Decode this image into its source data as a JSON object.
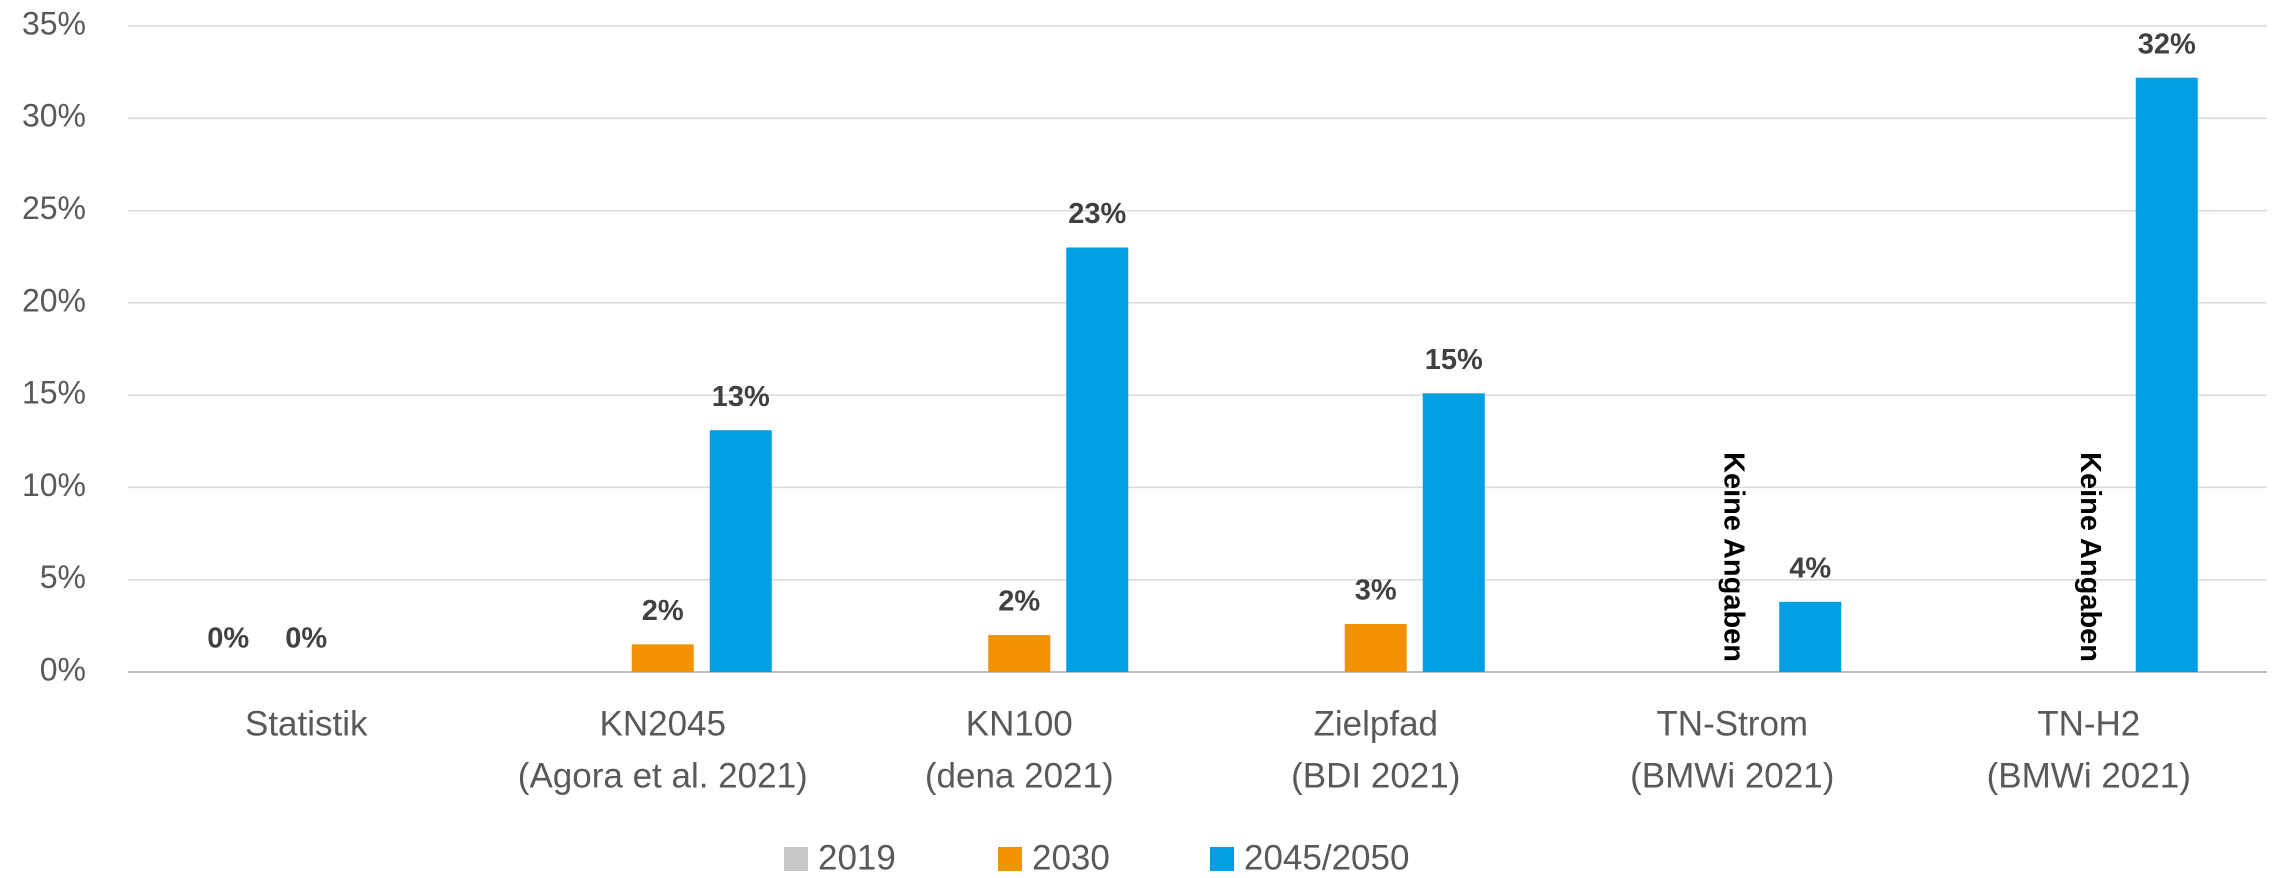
{
  "chart_data": {
    "type": "bar",
    "categories": [
      [
        "Statistik"
      ],
      [
        "KN2045",
        "(Agora et al. 2021)"
      ],
      [
        "KN100",
        "(dena 2021)"
      ],
      [
        "Zielpfad",
        "(BDI 2021)"
      ],
      [
        "TN-Strom",
        "(BMWi 2021)"
      ],
      [
        "TN-H2",
        "(BMWi 2021)"
      ]
    ],
    "series": [
      {
        "name": "2019",
        "color": "#c8c8c8",
        "values": [
          0,
          null,
          null,
          null,
          null,
          null
        ],
        "value_labels": [
          "0%",
          null,
          null,
          null,
          null,
          null
        ]
      },
      {
        "name": "2030",
        "color": "#f39200",
        "values": [
          0,
          1.5,
          2.0,
          2.6,
          null,
          null
        ],
        "value_labels": [
          "0%",
          "2%",
          "2%",
          "3%",
          "Keine Angaben",
          "Keine Angaben"
        ]
      },
      {
        "name": "2045/2050",
        "color": "#009fe3",
        "values": [
          null,
          13.1,
          23.0,
          15.1,
          3.8,
          32.2
        ],
        "value_labels": [
          null,
          "13%",
          "23%",
          "15%",
          "4%",
          "32%"
        ]
      }
    ],
    "ylim": [
      0,
      35
    ],
    "yticks": [
      {
        "value": 0,
        "label": "0%"
      },
      {
        "value": 5,
        "label": "5%"
      },
      {
        "value": 10,
        "label": "10%"
      },
      {
        "value": 15,
        "label": "15%"
      },
      {
        "value": 20,
        "label": "20%"
      },
      {
        "value": 25,
        "label": "25%"
      },
      {
        "value": 30,
        "label": "30%"
      },
      {
        "value": 35,
        "label": "35%"
      }
    ],
    "grid": true,
    "legend": "bottom"
  }
}
